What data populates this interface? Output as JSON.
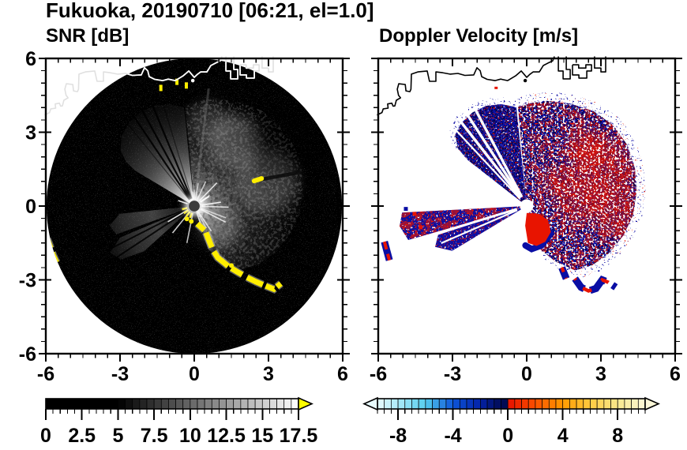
{
  "figure": {
    "title": "Fukuoka, 20190710 [06:21, el=1.0]",
    "background": "#ffffff",
    "frame_color": "#000000"
  },
  "chart_data": {
    "type": "heatmap",
    "description": "Two radar PPI panels (SNR and Doppler velocity) for Fukuoka, 2019-07-10 06:21, elevation 1.0 deg; axes are distance in km from radar",
    "axes": {
      "xlim": [
        -6,
        6
      ],
      "ylim": [
        -6,
        6
      ],
      "major_ticks": [
        -6,
        -3,
        0,
        3,
        6
      ],
      "minor_tick_step": 0.5,
      "x_tick_labels": [
        "-6",
        "-3",
        "0",
        "3",
        "6"
      ],
      "y_tick_labels": [
        "6",
        "3",
        "0",
        "-3",
        "-6"
      ]
    },
    "panels": [
      {
        "id": "snr",
        "title": "SNR [dB]",
        "colorbar": {
          "min": 0,
          "max": 17.5,
          "cell": 0.5,
          "labels": [
            "0",
            "2.5",
            "5",
            "7.5",
            "10",
            "12.5",
            "15",
            "17.5"
          ],
          "label_values": [
            0,
            2.5,
            5,
            7.5,
            10,
            12.5,
            15,
            17.5
          ],
          "black_below": 5,
          "over_color": "#ffff00",
          "scheme": "black to white grayscale"
        }
      },
      {
        "id": "vel",
        "title": "Doppler Velocity [m/s]",
        "colorbar": {
          "min": -9.5,
          "max": 10,
          "cell": 0.5,
          "labels": [
            "-8",
            "-4",
            "0",
            "4",
            "8"
          ],
          "label_values": [
            -8,
            -4,
            0,
            4,
            8
          ],
          "anchors_neg": [
            [
              -9.5,
              "#e8fbfd"
            ],
            [
              -8,
              "#abe9f7"
            ],
            [
              -6,
              "#55cdee"
            ],
            [
              -4,
              "#0d55d8"
            ],
            [
              -2,
              "#0322a8"
            ],
            [
              -0.5,
              "#020b54"
            ]
          ],
          "anchors_pos": [
            [
              0,
              "#e51000"
            ],
            [
              2,
              "#fc5000"
            ],
            [
              4,
              "#ff9a00"
            ],
            [
              6,
              "#ffcb40"
            ],
            [
              8,
              "#f9e88c"
            ],
            [
              10,
              "#fcf8d8"
            ]
          ]
        }
      }
    ],
    "geography": {
      "coast_main": [
        [
          -6.05,
          3.7
        ],
        [
          -5.85,
          3.8
        ],
        [
          -5.8,
          3.95
        ],
        [
          -5.6,
          3.98
        ],
        [
          -5.62,
          4.15
        ],
        [
          -5.45,
          4.18
        ],
        [
          -5.4,
          4.06
        ],
        [
          -5.33,
          4.07
        ],
        [
          -5.27,
          4.3
        ],
        [
          -5.1,
          4.4
        ],
        [
          -5.18,
          4.5
        ],
        [
          -5.23,
          4.75
        ],
        [
          -5.17,
          4.97
        ],
        [
          -4.91,
          4.94
        ],
        [
          -4.88,
          4.68
        ],
        [
          -4.72,
          4.65
        ],
        [
          -4.68,
          4.75
        ],
        [
          -4.66,
          5.36
        ],
        [
          -4.4,
          5.45
        ],
        [
          -4.02,
          5.49
        ],
        [
          -3.93,
          5.07
        ],
        [
          -3.67,
          5.07
        ],
        [
          -3.67,
          5.45
        ],
        [
          -3.4,
          5.42
        ],
        [
          -3.1,
          5.36
        ],
        [
          -2.78,
          5.39
        ],
        [
          -2.5,
          5.31
        ],
        [
          -2.14,
          5.33
        ],
        [
          -2.01,
          5.62
        ],
        [
          -1.88,
          5.5
        ],
        [
          -1.82,
          5.26
        ],
        [
          -1.6,
          5.15
        ],
        [
          -1.28,
          5.1
        ],
        [
          -1.05,
          5.16
        ],
        [
          -0.77,
          5.1
        ],
        [
          -0.45,
          5.29
        ],
        [
          -0.22,
          5.49
        ],
        [
          -0.1,
          5.35
        ],
        [
          0.0,
          5.23
        ],
        [
          0.12,
          5.35
        ],
        [
          0.26,
          5.45
        ],
        [
          0.51,
          5.45
        ],
        [
          0.67,
          5.71
        ],
        [
          0.86,
          5.81
        ],
        [
          1.05,
          5.9
        ],
        [
          1.12,
          6.08
        ]
      ],
      "coast_blocks": [
        [
          [
            1.28,
            6.08
          ],
          [
            1.28,
            5.49
          ],
          [
            1.47,
            5.49
          ],
          [
            1.47,
            5.17
          ],
          [
            1.76,
            5.17
          ],
          [
            1.76,
            5.55
          ],
          [
            1.6,
            5.55
          ],
          [
            1.6,
            6.08
          ]
        ],
        [
          [
            1.85,
            5.74
          ],
          [
            1.85,
            5.33
          ],
          [
            2.11,
            5.33
          ],
          [
            2.11,
            5.2
          ],
          [
            2.43,
            5.2
          ],
          [
            2.43,
            5.49
          ],
          [
            2.62,
            5.49
          ],
          [
            2.62,
            5.74
          ],
          [
            2.39,
            5.74
          ],
          [
            2.39,
            5.61
          ],
          [
            2.1,
            5.61
          ],
          [
            2.1,
            5.74
          ],
          [
            1.85,
            5.74
          ]
        ],
        [
          [
            2.74,
            6.08
          ],
          [
            2.74,
            5.61
          ],
          [
            3.0,
            5.61
          ],
          [
            3.0,
            5.45
          ],
          [
            3.19,
            5.45
          ],
          [
            3.19,
            6.08
          ]
        ]
      ],
      "island": [
        -0.06,
        5.1
      ]
    },
    "snr": {
      "disk_radius_km": 5.97,
      "center_dot_radius_km": 0.22,
      "fan_nw": [
        [
          96,
          126
        ],
        [
          104,
          133
        ],
        [
          112,
          137
        ],
        [
          120,
          137
        ],
        [
          128,
          134
        ],
        [
          136,
          128
        ],
        [
          143,
          117
        ],
        [
          147,
          103
        ],
        [
          149,
          88
        ]
      ],
      "fan_east": [
        [
          -72,
          58
        ],
        [
          -63,
          76
        ],
        [
          -53,
          100
        ],
        [
          -42,
          110
        ],
        [
          -30,
          118
        ],
        [
          -17,
          126
        ],
        [
          -5,
          133
        ],
        [
          7,
          138
        ],
        [
          19,
          144
        ],
        [
          31,
          148
        ],
        [
          43,
          150
        ],
        [
          55,
          148
        ],
        [
          67,
          143
        ],
        [
          78,
          139
        ],
        [
          87,
          134
        ],
        [
          95,
          128
        ]
      ],
      "wedges_sw": [
        [
          [
            186,
            95
          ],
          [
            193,
            110
          ],
          [
            200,
            105
          ]
        ],
        [
          [
            203,
            102
          ],
          [
            209,
            122
          ],
          [
            216,
            115
          ],
          [
            222,
            86
          ]
        ]
      ],
      "shadow_rays_nw": [
        112.5,
        118.5,
        124
      ],
      "shadow_rays_faint": [
        107,
        129
      ],
      "shadow_rays_sw": [
        207,
        213.5
      ],
      "north_ray_deg": 83,
      "clutter_arc": [
        [
          0.12,
          -0.72
        ],
        [
          0.45,
          -1.02
        ],
        [
          0.62,
          -1.45
        ],
        [
          0.75,
          -1.78
        ],
        [
          0.95,
          -2.1
        ],
        [
          1.2,
          -2.3
        ],
        [
          1.42,
          -2.48
        ],
        [
          1.75,
          -2.68
        ],
        [
          2.1,
          -2.88
        ],
        [
          2.5,
          -3.08
        ],
        [
          2.9,
          -3.25
        ],
        [
          3.22,
          -3.38
        ],
        [
          3.5,
          -3.15
        ]
      ],
      "clutter_left_edge": [
        [
          -5.95,
          -1.35
        ],
        [
          -5.82,
          -1.7
        ],
        [
          -5.72,
          -2.0
        ],
        [
          -5.58,
          -2.3
        ]
      ],
      "clutter_dots": [
        [
          -0.3,
          -0.52
        ],
        [
          -0.12,
          -0.62
        ],
        [
          0.3,
          -0.9
        ],
        [
          1.5,
          -2.42
        ]
      ],
      "coast_dots": [
        [
          -1.35,
          4.8
        ],
        [
          -0.7,
          5.05
        ],
        [
          -0.32,
          4.9
        ]
      ],
      "dark_streak": [
        [
          2.55,
          1.05
        ],
        [
          4.3,
          1.38
        ]
      ],
      "streak_blob": [
        [
          2.42,
          1.02
        ],
        [
          2.72,
          1.12
        ]
      ]
    },
    "vel": {
      "hole_radius_km": 0.27,
      "fan_nw": [
        [
          96,
          126
        ],
        [
          104,
          133
        ],
        [
          112,
          137
        ],
        [
          120,
          137
        ],
        [
          128,
          134
        ],
        [
          135,
          128
        ],
        [
          140,
          114
        ],
        [
          142,
          95
        ]
      ],
      "fan_east": [
        [
          -72,
          58
        ],
        [
          -63,
          78
        ],
        [
          -53,
          102
        ],
        [
          -42,
          112
        ],
        [
          -30,
          120
        ],
        [
          -17,
          128
        ],
        [
          -5,
          135
        ],
        [
          7,
          140
        ],
        [
          19,
          145
        ],
        [
          31,
          149
        ],
        [
          43,
          150
        ],
        [
          55,
          147
        ],
        [
          67,
          141
        ],
        [
          78,
          136
        ],
        [
          87,
          131
        ],
        [
          95,
          126
        ]
      ],
      "wedges_w": [
        [
          [
            183,
            158
          ],
          [
            189,
            163
          ],
          [
            196,
            156
          ]
        ],
        [
          [
            198,
            118
          ],
          [
            204,
            127
          ],
          [
            211,
            110
          ]
        ]
      ],
      "gap_rays_nw": [
        118,
        123,
        128,
        133
      ],
      "gap_rays_w": [
        197,
        203.5
      ],
      "white_sliver": [
        248,
        255
      ],
      "red_core": [
        [
          0.0,
          -0.28
        ],
        [
          0.5,
          -0.32
        ],
        [
          0.85,
          -0.55
        ],
        [
          0.98,
          -1.05
        ],
        [
          0.75,
          -1.45
        ],
        [
          0.4,
          -1.62
        ],
        [
          0.05,
          -1.5
        ],
        [
          -0.06,
          -0.8
        ]
      ],
      "core_rim": [
        [
          0.98,
          -1.1
        ],
        [
          0.6,
          -1.6
        ],
        [
          0.2,
          -1.75
        ],
        [
          -0.05,
          -1.6
        ]
      ],
      "arc_chain": [
        [
          1.95,
          -2.95
        ],
        [
          2.2,
          -3.3
        ],
        [
          2.5,
          -3.45
        ],
        [
          2.8,
          -3.35
        ],
        [
          3.05,
          -3.0
        ],
        [
          3.3,
          -3.1
        ],
        [
          3.6,
          -3.3
        ]
      ],
      "arc_blob": [
        [
          1.42,
          -2.5
        ],
        [
          1.6,
          -2.95
        ]
      ],
      "left_edge": [
        [
          -5.75,
          -1.45
        ],
        [
          -5.55,
          -2.2
        ]
      ],
      "red_dot_coast": [
        -1.3,
        4.85
      ],
      "red_patches": [
        [
          2.1,
          0.2,
          28
        ],
        [
          3.1,
          1.5,
          40
        ],
        [
          2.4,
          2.4,
          26
        ],
        [
          3.6,
          -0.3,
          30
        ],
        [
          1.2,
          1.0,
          20
        ]
      ],
      "west_specks": [
        [
          -4.75,
          -0.55
        ],
        [
          -4.55,
          -0.3
        ],
        [
          -4.9,
          -0.1
        ],
        [
          -4.3,
          -0.85
        ]
      ]
    },
    "colors": {
      "snr_clutter": "#ffee00",
      "snr_center_dot": "#3c3c3c",
      "snr_coast": "#ffffff",
      "vel_toward_base": "#0a0ea4",
      "vel_toward_dark": "#03063f",
      "vel_toward_light": "#2637d6",
      "vel_away_red": "#e81400",
      "vel_coast": "#000000"
    }
  }
}
